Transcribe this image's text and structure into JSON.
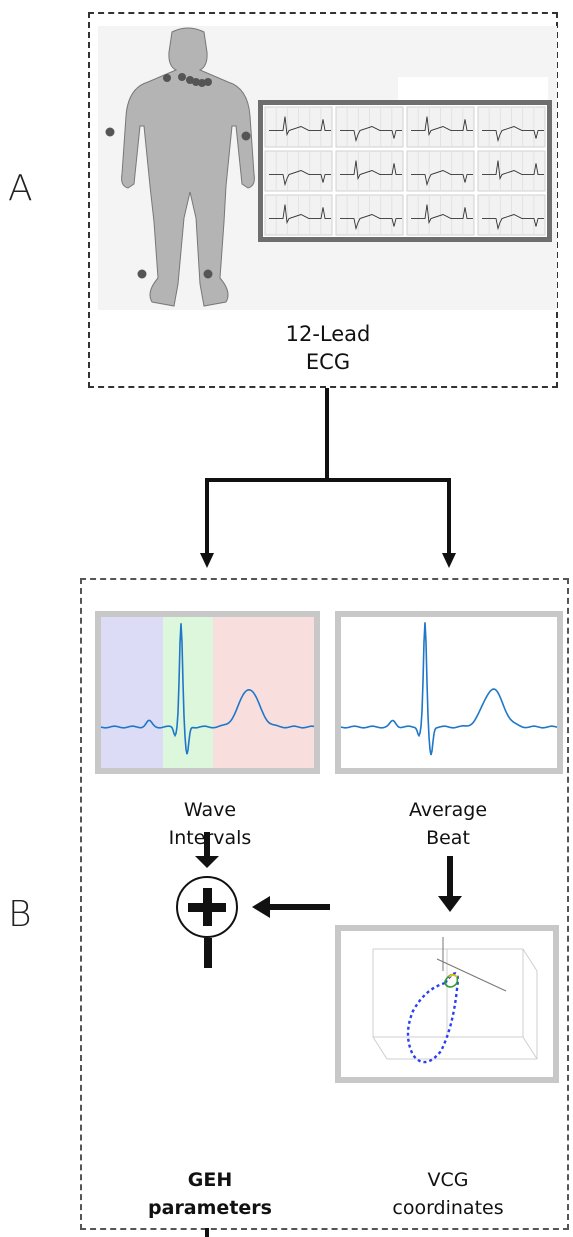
{
  "sections": {
    "a_letter": "A",
    "b_letter": "B"
  },
  "panel_a": {
    "label_line1": "12-Lead",
    "label_line2": "ECG"
  },
  "panel_b": {
    "wave_label_line1": "Wave",
    "wave_label_line2": "Intervals",
    "average_label_line1": "Average",
    "average_label_line2": "Beat",
    "vcg_label_line1": "VCG",
    "vcg_label_line2": "coordinates",
    "geh_label_line1": "GEH",
    "geh_label_line2": "parameters"
  },
  "colors": {
    "ecg_trace": "#1f77c9",
    "interval_p": "#dcdcf7",
    "interval_qrs": "#dcf7dc",
    "interval_t": "#f9dede",
    "body": "#b4b4b4",
    "electrode": "#555555",
    "vcg_loop": "#2a3ff0"
  }
}
